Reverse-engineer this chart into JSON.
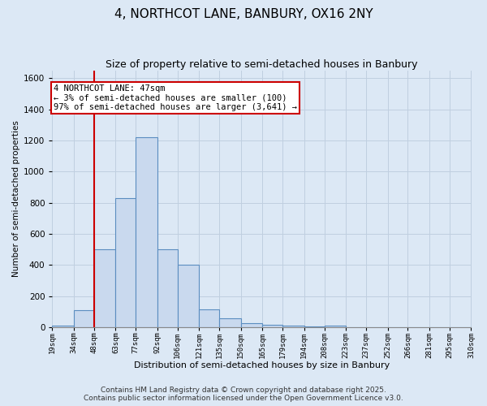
{
  "title_line1": "4, NORTHCOT LANE, BANBURY, OX16 2NY",
  "title_line2": "Size of property relative to semi-detached houses in Banbury",
  "xlabel": "Distribution of semi-detached houses by size in Banbury",
  "ylabel": "Number of semi-detached properties",
  "bin_edges": [
    19,
    34,
    48,
    63,
    77,
    92,
    106,
    121,
    135,
    150,
    165,
    179,
    194,
    208,
    223,
    237,
    252,
    266,
    281,
    295,
    310
  ],
  "bin_counts": [
    10,
    110,
    500,
    830,
    1220,
    500,
    400,
    115,
    55,
    25,
    15,
    10,
    5,
    10,
    0,
    0,
    0,
    0,
    0,
    0
  ],
  "bar_color": "#c9d9ee",
  "bar_edge_color": "#5b8dc0",
  "grid_color": "#c0cfe0",
  "vline_x": 48,
  "vline_color": "#cc0000",
  "annotation_text": "4 NORTHCOT LANE: 47sqm\n← 3% of semi-detached houses are smaller (100)\n97% of semi-detached houses are larger (3,641) →",
  "annotation_box_color": "white",
  "annotation_edge_color": "#cc0000",
  "annotation_fontsize": 7.5,
  "ylim": [
    0,
    1650
  ],
  "yticks": [
    0,
    200,
    400,
    600,
    800,
    1000,
    1200,
    1400,
    1600
  ],
  "background_color": "#dce8f5",
  "plot_bg_color": "#dce8f5",
  "footer_line1": "Contains HM Land Registry data © Crown copyright and database right 2025.",
  "footer_line2": "Contains public sector information licensed under the Open Government Licence v3.0.",
  "footer_fontsize": 6.5,
  "title1_fontsize": 11,
  "title2_fontsize": 9,
  "ylabel_fontsize": 7.5,
  "xlabel_fontsize": 8,
  "tick_labels": [
    "19sqm",
    "34sqm",
    "48sqm",
    "63sqm",
    "77sqm",
    "92sqm",
    "106sqm",
    "121sqm",
    "135sqm",
    "150sqm",
    "165sqm",
    "179sqm",
    "194sqm",
    "208sqm",
    "223sqm",
    "237sqm",
    "252sqm",
    "266sqm",
    "281sqm",
    "295sqm",
    "310sqm"
  ]
}
